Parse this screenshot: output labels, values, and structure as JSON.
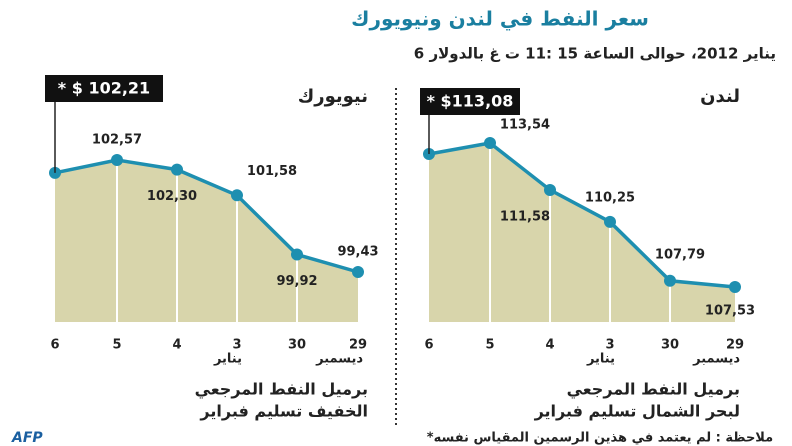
{
  "header": {
    "title": "سعر النفط في لندن ونيويورك",
    "subtitle": "6 يناير 2012، حوالى الساعة 15 :11 ت غ بالدولار"
  },
  "chart_data": [
    {
      "type": "area",
      "title": "نيويورك",
      "caption": [
        "برميل النفط المرجعي",
        "الخفيف تسليم فبراير"
      ],
      "categories": [
        "6",
        "5",
        "4",
        "3",
        "30",
        "29"
      ],
      "x_sublabels": [
        null,
        null,
        null,
        "يناير",
        null,
        "ديسمبر"
      ],
      "values": [
        102.21,
        102.57,
        102.3,
        101.58,
        99.92,
        99.43
      ],
      "value_labels": [
        "* $ 102,21",
        "102,57",
        "102,30",
        "101,58",
        "99,92",
        "99,43"
      ],
      "color": "#1e8fb0",
      "fill": "#d8d5ab"
    },
    {
      "type": "area",
      "title": "لندن",
      "caption": [
        "برميل النفط المرجعي",
        "لبحر الشمال تسليم فبراير"
      ],
      "categories": [
        "6",
        "5",
        "4",
        "3",
        "30",
        "29"
      ],
      "x_sublabels": [
        null,
        null,
        null,
        "يناير",
        null,
        "ديسمبر"
      ],
      "values": [
        113.08,
        113.54,
        111.58,
        110.25,
        107.79,
        107.53
      ],
      "value_labels": [
        "* $113,08",
        "113,54",
        "111,58",
        "110,25",
        "107,79",
        "107,53"
      ],
      "color": "#1e8fb0",
      "fill": "#d8d5ab"
    }
  ],
  "note": "*ملاحظة : لم يعتمد في هذين الرسمين المقياس نفسه",
  "source": "AFP"
}
